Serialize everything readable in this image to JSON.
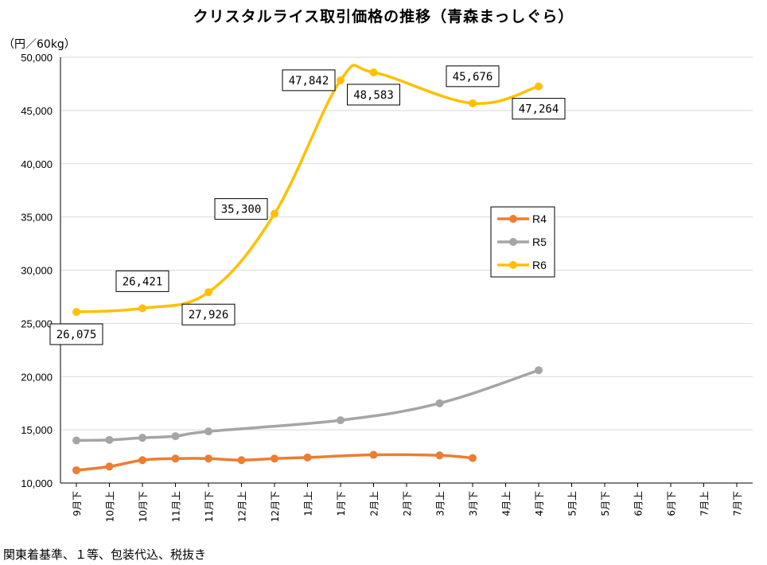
{
  "title": "クリスタルライス取引価格の推移（青森まっしぐら）",
  "unit": "（円／60kg）",
  "footnote": "関東着基準、１等、包装代込、税抜き",
  "colors": {
    "R4": "#ED7D31",
    "R5": "#A5A5A5",
    "R6": "#FFC000",
    "grid": "#d9d9d9",
    "axis": "#000000"
  },
  "chart_data": {
    "type": "line",
    "title": "クリスタルライス取引価格の推移（青森まっしぐら）",
    "ylabel": "（円／60kg）",
    "xlabel": "",
    "ylim": [
      10000,
      50000
    ],
    "yticks": [
      10000,
      15000,
      20000,
      25000,
      30000,
      35000,
      40000,
      45000,
      50000
    ],
    "ytick_labels": [
      "10,000",
      "15,000",
      "20,000",
      "25,000",
      "30,000",
      "35,000",
      "40,000",
      "45,000",
      "50,000"
    ],
    "grid": "horizontal",
    "legend": "right",
    "categories": [
      "9月下",
      "10月上",
      "10月下",
      "11月上",
      "11月下",
      "12月上",
      "12月下",
      "1月上",
      "1月下",
      "2月上",
      "2月下",
      "3月上",
      "3月下",
      "4月上",
      "4月下",
      "5月上",
      "5月下",
      "6月上",
      "6月下",
      "7月上",
      "7月下"
    ],
    "series": [
      {
        "name": "R4",
        "color": "#ED7D31",
        "points": [
          [
            "9月下",
            11200
          ],
          [
            "10月上",
            11550
          ],
          [
            "10月下",
            12150
          ],
          [
            "11月上",
            12300
          ],
          [
            "11月下",
            12300
          ],
          [
            "12月上",
            12150
          ],
          [
            "12月下",
            12300
          ],
          [
            "1月上",
            12400
          ],
          [
            "2月上",
            12650
          ],
          [
            "3月上",
            12600
          ],
          [
            "3月下",
            12350
          ]
        ]
      },
      {
        "name": "R5",
        "color": "#A5A5A5",
        "points": [
          [
            "9月下",
            14000
          ],
          [
            "10月上",
            14050
          ],
          [
            "10月下",
            14250
          ],
          [
            "11月上",
            14400
          ],
          [
            "11月下",
            14850
          ],
          [
            "1月下",
            15900
          ],
          [
            "3月上",
            17500
          ],
          [
            "4月下",
            20600
          ]
        ]
      },
      {
        "name": "R6",
        "color": "#FFC000",
        "points": [
          [
            "9月下",
            26075
          ],
          [
            "10月下",
            26421
          ],
          [
            "11月下",
            27926
          ],
          [
            "12月下",
            35300
          ],
          [
            "1月下",
            47842
          ],
          [
            "2月上",
            48583
          ],
          [
            "3月下",
            45676
          ],
          [
            "4月下",
            47264
          ]
        ],
        "labels": [
          {
            "x": "9月下",
            "text": "26,075",
            "pos": "below"
          },
          {
            "x": "10月下",
            "text": "26,421",
            "pos": "above"
          },
          {
            "x": "11月下",
            "text": "27,926",
            "pos": "below"
          },
          {
            "x": "12月下",
            "text": "35,300",
            "pos": "aboveleft"
          },
          {
            "x": "1月下",
            "text": "47,842",
            "pos": "left"
          },
          {
            "x": "2月上",
            "text": "48,583",
            "pos": "below"
          },
          {
            "x": "3月下",
            "text": "45,676",
            "pos": "above"
          },
          {
            "x": "4月下",
            "text": "47,264",
            "pos": "below"
          }
        ]
      }
    ]
  }
}
